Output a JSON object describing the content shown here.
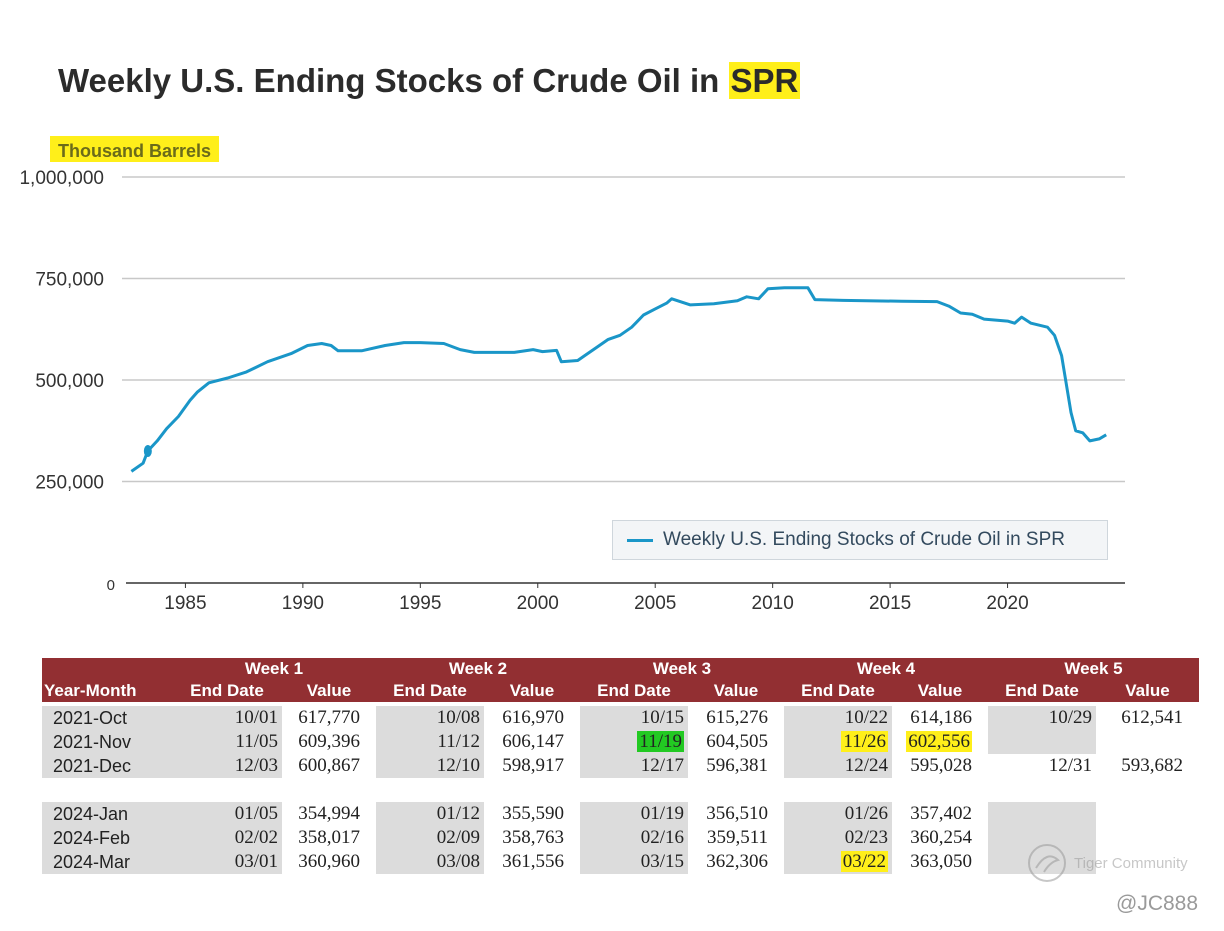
{
  "title_main": "Weekly U.S. Ending Stocks of Crude Oil in ",
  "title_highlight": "SPR",
  "units": "Thousand Barrels",
  "legend_label": "Weekly U.S. Ending Stocks of Crude Oil in SPR",
  "colors": {
    "line": "#1a96c8",
    "header": "#922f32",
    "highlight": "#ffef1a",
    "green": "#22c922",
    "grid": "#c8c8c8"
  },
  "chart_data": {
    "type": "line",
    "title": "Weekly U.S. Ending Stocks of Crude Oil in SPR",
    "ylabel": "Thousand Barrels",
    "xlabel": "",
    "ylim": [
      0,
      1000000
    ],
    "xlim": [
      1982.3,
      2025.0
    ],
    "yticks": [
      0,
      250000,
      500000,
      750000,
      1000000
    ],
    "yticklabels": [
      "0",
      "250,000",
      "500,000",
      "750,000",
      "1,000,000"
    ],
    "xticks": [
      1985,
      1990,
      1995,
      2000,
      2005,
      2010,
      2015,
      2020
    ],
    "xticklabels": [
      "1985",
      "1990",
      "1995",
      "2000",
      "2005",
      "2010",
      "2015",
      "2020"
    ],
    "series": [
      {
        "name": "Weekly U.S. Ending Stocks of Crude Oil in SPR",
        "x": [
          1982.7,
          1983.2,
          1983.4,
          1983.8,
          1984.2,
          1984.7,
          1985.2,
          1985.5,
          1986.0,
          1986.8,
          1987.6,
          1988.5,
          1989.5,
          1990.2,
          1990.8,
          1991.2,
          1991.5,
          1992.5,
          1993.5,
          1994.3,
          1995.0,
          1996.0,
          1996.7,
          1997.3,
          1998.0,
          1999.0,
          1999.8,
          2000.2,
          2000.8,
          2001.0,
          2001.7,
          2002.0,
          2002.5,
          2003.0,
          2003.5,
          2004.0,
          2004.5,
          2005.0,
          2005.5,
          2005.7,
          2006.5,
          2007.5,
          2008.5,
          2008.9,
          2009.4,
          2009.8,
          2010.5,
          2011.5,
          2011.8,
          2013.0,
          2014.0,
          2015.5,
          2017.0,
          2017.5,
          2018.0,
          2018.5,
          2019.0,
          2020.0,
          2020.3,
          2020.6,
          2021.0,
          2021.7,
          2022.0,
          2022.3,
          2022.7,
          2022.9,
          2023.2,
          2023.5,
          2023.9,
          2024.2
        ],
        "values": [
          275000,
          295000,
          325000,
          350000,
          380000,
          410000,
          450000,
          470000,
          493000,
          505000,
          520000,
          545000,
          565000,
          585000,
          590000,
          585000,
          572000,
          572000,
          585000,
          592000,
          592000,
          590000,
          575000,
          568000,
          568000,
          568000,
          575000,
          570000,
          573000,
          545000,
          548000,
          560000,
          580000,
          600000,
          610000,
          630000,
          660000,
          675000,
          690000,
          700000,
          685000,
          688000,
          695000,
          705000,
          700000,
          725000,
          727000,
          727000,
          698000,
          696000,
          695000,
          694000,
          693000,
          682000,
          665000,
          662000,
          650000,
          645000,
          640000,
          655000,
          640000,
          630000,
          610000,
          560000,
          420000,
          375000,
          370000,
          350000,
          355000,
          365000
        ]
      }
    ]
  },
  "table": {
    "ym_header": "Year-Month",
    "week_headers": [
      "Week 1",
      "Week 2",
      "Week 3",
      "Week 4",
      "Week 5"
    ],
    "sub_headers": [
      "End Date",
      "Value"
    ],
    "group1": [
      {
        "ym": "2021-Oct",
        "cells": [
          [
            "10/01",
            "617,770"
          ],
          [
            "10/08",
            "616,970"
          ],
          [
            "10/15",
            "615,276"
          ],
          [
            "10/22",
            "614,186"
          ],
          [
            "10/29",
            "612,541"
          ]
        ]
      },
      {
        "ym": "2021-Nov",
        "cells": [
          [
            "11/05",
            "609,396"
          ],
          [
            "11/12",
            "606,147"
          ],
          [
            "11/19",
            "604,505"
          ],
          [
            "11/26",
            "602,556"
          ],
          [
            "",
            ""
          ]
        ]
      },
      {
        "ym": "2021-Dec",
        "cells": [
          [
            "12/03",
            "600,867"
          ],
          [
            "12/10",
            "598,917"
          ],
          [
            "12/17",
            "596,381"
          ],
          [
            "12/24",
            "595,028"
          ],
          [
            "12/31",
            "593,682"
          ]
        ]
      }
    ],
    "group2": [
      {
        "ym": "2024-Jan",
        "cells": [
          [
            "01/05",
            "354,994"
          ],
          [
            "01/12",
            "355,590"
          ],
          [
            "01/19",
            "356,510"
          ],
          [
            "01/26",
            "357,402"
          ],
          [
            "",
            ""
          ]
        ]
      },
      {
        "ym": "2024-Feb",
        "cells": [
          [
            "02/02",
            "358,017"
          ],
          [
            "02/09",
            "358,763"
          ],
          [
            "02/16",
            "359,511"
          ],
          [
            "02/23",
            "360,254"
          ],
          [
            "",
            ""
          ]
        ]
      },
      {
        "ym": "2024-Mar",
        "cells": [
          [
            "03/01",
            "360,960"
          ],
          [
            "03/08",
            "361,556"
          ],
          [
            "03/15",
            "362,306"
          ],
          [
            "03/22",
            "363,050"
          ],
          [
            "",
            ""
          ]
        ]
      }
    ]
  },
  "watermark": "Tiger Community",
  "handle": "@JC888"
}
